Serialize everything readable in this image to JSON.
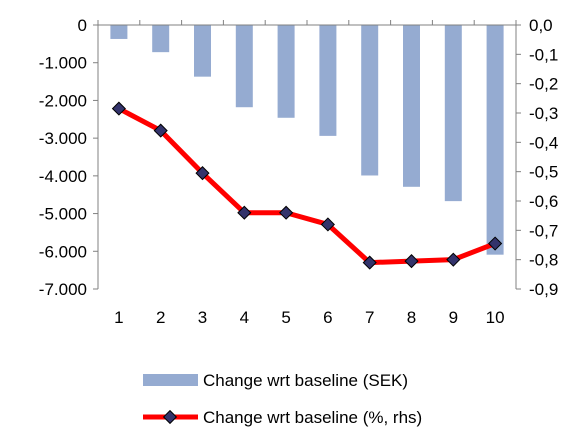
{
  "chart_data": {
    "type": "bar+line",
    "categories": [
      "1",
      "2",
      "3",
      "4",
      "5",
      "6",
      "7",
      "8",
      "9",
      "10"
    ],
    "series": [
      {
        "name": "Change wrt baseline (SEK)",
        "type": "bar",
        "axis": "left",
        "color": "#95abd1",
        "values": [
          -370,
          -720,
          -1370,
          -2180,
          -2460,
          -2940,
          -3990,
          -4290,
          -4670,
          -6090
        ]
      },
      {
        "name": "Change wrt baseline (%, rhs)",
        "type": "line",
        "axis": "right",
        "color": "#ff0000",
        "marker_color": "#33336b",
        "values": [
          -0.285,
          -0.36,
          -0.505,
          -0.64,
          -0.64,
          -0.68,
          -0.81,
          -0.805,
          -0.8,
          -0.745
        ]
      }
    ],
    "y_left": {
      "ylim": [
        -7000,
        0
      ],
      "ticks": [
        0,
        -1000,
        -2000,
        -3000,
        -4000,
        -5000,
        -6000,
        -7000
      ],
      "tick_labels": [
        "0",
        "-1.000",
        "-2.000",
        "-3.000",
        "-4.000",
        "-5.000",
        "-6.000",
        "-7.000"
      ]
    },
    "y_right": {
      "ylim": [
        -0.9,
        0
      ],
      "ticks": [
        0,
        -0.1,
        -0.2,
        -0.3,
        -0.4,
        -0.5,
        -0.6,
        -0.7,
        -0.8,
        -0.9
      ],
      "tick_labels": [
        "0,0",
        "-0,1",
        "-0,2",
        "-0,3",
        "-0,4",
        "-0,5",
        "-0,6",
        "-0,7",
        "-0,8",
        "-0,9"
      ]
    },
    "grid": false,
    "legend_position": "bottom"
  }
}
